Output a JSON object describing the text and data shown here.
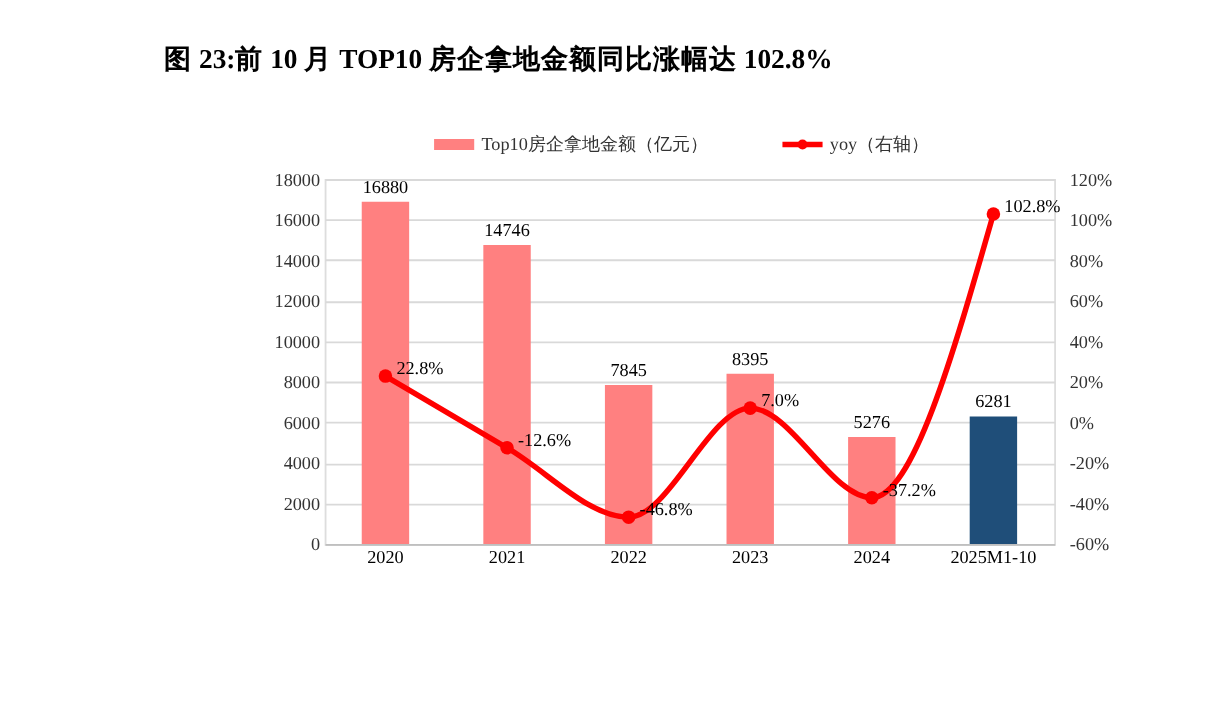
{
  "chart_data": {
    "type": "bar",
    "title": "图 23:前 10 月 TOP10 房企拿地金额同比涨幅达 102.8%",
    "categories": [
      "2020",
      "2021",
      "2022",
      "2023",
      "2024",
      "2025M1-10"
    ],
    "series": [
      {
        "name": "Top10房企拿地金额（亿元）",
        "color": "#ff8080",
        "colors": [
          "#ff8080",
          "#ff8080",
          "#ff8080",
          "#ff8080",
          "#ff8080",
          "#1f4e79"
        ],
        "values": [
          16880,
          14746,
          7845,
          8395,
          5276,
          6281
        ]
      },
      {
        "name": "yoy（右轴）",
        "type": "line",
        "axis": "y2",
        "color": "#ff0000",
        "marker": "circle",
        "values": [
          22.8,
          -12.6,
          -46.8,
          7.0,
          -37.2,
          102.8
        ],
        "value_labels": [
          "22.8%",
          "-12.6%",
          "-46.8%",
          "7.0%",
          "-37.2%",
          "102.8%"
        ]
      }
    ],
    "data_labels": true,
    "ylim": [
      0,
      18000
    ],
    "yticks": [
      0,
      2000,
      4000,
      6000,
      8000,
      10000,
      12000,
      14000,
      16000,
      18000
    ],
    "y2lim": [
      -60,
      120
    ],
    "y2ticks": [
      {
        "value": -60,
        "label": "-60%"
      },
      {
        "value": -40,
        "label": "-40%"
      },
      {
        "value": -20,
        "label": "-20%"
      },
      {
        "value": 0,
        "label": "0%"
      },
      {
        "value": 20,
        "label": "20%"
      },
      {
        "value": 40,
        "label": "40%"
      },
      {
        "value": 60,
        "label": "60%"
      },
      {
        "value": 80,
        "label": "80%"
      },
      {
        "value": 100,
        "label": "100%"
      },
      {
        "value": 120,
        "label": "120%"
      }
    ],
    "grid": "y",
    "legend": "top"
  }
}
